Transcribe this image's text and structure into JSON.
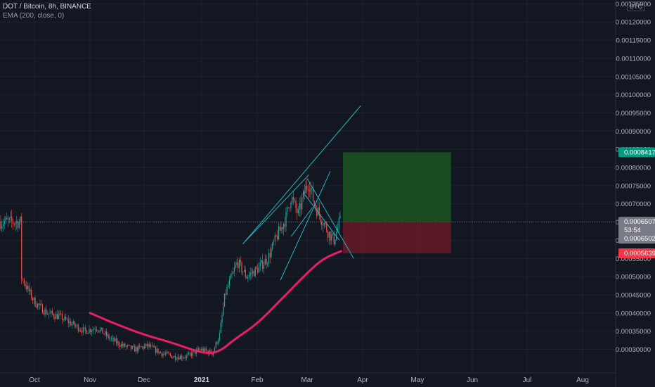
{
  "header": {
    "symbol_line": "DOT / Bitcoin, 8h, BINANCE",
    "indicator_line": "EMA (200, close, 0)"
  },
  "price_axis": {
    "unit_label": "BTC"
  },
  "colors": {
    "background": "#131722",
    "grid": "#1e222d",
    "up_candle": "#26a69a",
    "down_candle": "#ef5350",
    "ema": "#e91e63",
    "trendline": "#22b5bf",
    "profit_zone": "#1b5e20",
    "loss_zone": "#6b1a28",
    "target_tag": "#089981",
    "stop_tag": "#f23645",
    "price_tag": "#787b86"
  },
  "chart_data": {
    "type": "candlestick",
    "x_axis": {
      "tick_labels": [
        "Oct",
        "Nov",
        "Dec",
        "2021",
        "Feb",
        "Mar",
        "Apr",
        "May",
        "Jun",
        "Jul",
        "Aug"
      ]
    },
    "y_axis": {
      "range": [
        0.00028,
        0.00128
      ],
      "tick_labels": [
        "0.00125000",
        "0.00120000",
        "0.00115000",
        "0.00110000",
        "0.00105000",
        "0.00100000",
        "0.00095000",
        "0.00090000",
        "0.00085000",
        "0.00080000",
        "0.00075000",
        "0.00070000",
        "0.00065000",
        "0.00060000",
        "0.00055000",
        "0.00050000",
        "0.00045000",
        "0.00040000",
        "0.00035000",
        "0.00030000"
      ]
    },
    "price_series_approx": [
      [
        "Sep 24",
        0.0005
      ],
      [
        "Oct 1",
        0.00043
      ],
      [
        "Oct 8",
        0.0004
      ],
      [
        "Oct 15",
        0.00039
      ],
      [
        "Oct 22",
        0.00037
      ],
      [
        "Oct 29",
        0.00035
      ],
      [
        "Nov 5",
        0.00036
      ],
      [
        "Nov 12",
        0.00033
      ],
      [
        "Nov 19",
        0.00031
      ],
      [
        "Nov 26",
        0.0003
      ],
      [
        "Dec 3",
        0.00031
      ],
      [
        "Dec 10",
        0.00029
      ],
      [
        "Dec 17",
        0.00028
      ],
      [
        "Dec 24",
        0.00028
      ],
      [
        "Dec 31",
        0.0003
      ],
      [
        "Jan 7",
        0.00029
      ],
      [
        "Jan 11",
        0.00034
      ],
      [
        "Jan 14",
        0.00045
      ],
      [
        "Jan 17",
        0.00049
      ],
      [
        "Jan 21",
        0.00054
      ],
      [
        "Jan 26",
        0.0005
      ],
      [
        "Feb 1",
        0.00052
      ],
      [
        "Feb 7",
        0.00055
      ],
      [
        "Feb 12",
        0.00061
      ],
      [
        "Feb 17",
        0.00066
      ],
      [
        "Feb 20",
        0.00072
      ],
      [
        "Feb 24",
        0.00067
      ],
      [
        "Feb 28",
        0.00074
      ],
      [
        "Mar 2",
        0.00076
      ],
      [
        "Mar 5",
        0.0007
      ],
      [
        "Mar 9",
        0.00066
      ],
      [
        "Mar 13",
        0.00062
      ],
      [
        "Mar 16",
        0.0006
      ],
      [
        "Mar 19",
        0.00065
      ]
    ],
    "ema_200_approx": [
      [
        "Nov 1",
        0.0004
      ],
      [
        "Nov 15",
        0.00037
      ],
      [
        "Dec 1",
        0.00034
      ],
      [
        "Dec 15",
        0.00032
      ],
      [
        "Jan 1",
        0.00029
      ],
      [
        "Jan 10",
        0.00029
      ],
      [
        "Jan 20",
        0.00033
      ],
      [
        "Feb 1",
        0.00037
      ],
      [
        "Feb 15",
        0.00044
      ],
      [
        "Mar 1",
        0.00051
      ],
      [
        "Mar 10",
        0.00055
      ],
      [
        "Mar 20",
        0.00057
      ]
    ],
    "position": {
      "target": "0.00084173",
      "entry": "0.00065070",
      "stop": "0.00056391",
      "countdown": "53:54",
      "last_price": "0.00065024"
    }
  }
}
